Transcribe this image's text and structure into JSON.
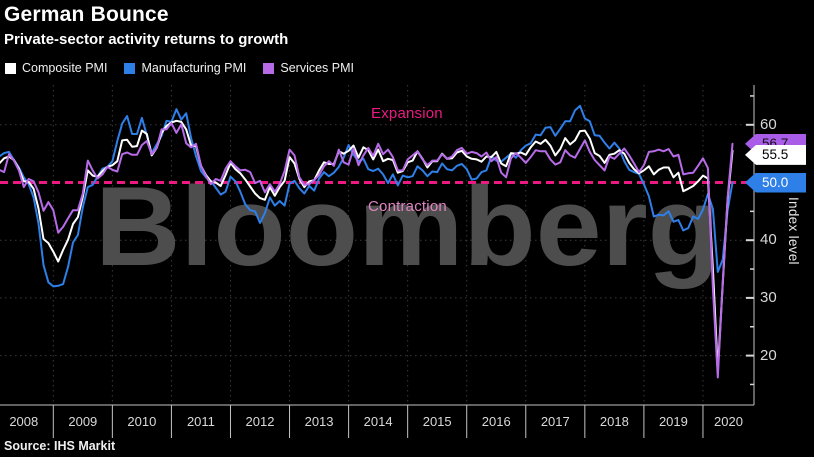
{
  "header": {
    "title": "German Bounce",
    "subtitle": "Private-sector activity returns to growth"
  },
  "legend": [
    {
      "label": "Composite PMI",
      "color": "#ffffff"
    },
    {
      "label": "Manufacturing PMI",
      "color": "#2e7fe8"
    },
    {
      "label": "Services PMI",
      "color": "#b76be8"
    }
  ],
  "watermark": "Bloomberg",
  "annotations": {
    "expansion": {
      "text": "Expansion",
      "color": "#ec1982"
    },
    "contraction": {
      "text": "Contraction",
      "color": "#de84c0"
    }
  },
  "axis": {
    "y_label": "Index level",
    "y_labels": [
      {
        "value": 60,
        "label": "60"
      },
      {
        "value": 40,
        "label": "40"
      },
      {
        "value": 30,
        "label": "30"
      },
      {
        "value": 20,
        "label": "20"
      }
    ],
    "y_major_ticks": [
      20,
      30,
      40,
      50,
      60
    ],
    "y_minor_ticks": [
      15,
      25,
      35,
      45,
      55,
      65
    ],
    "y_gridlines": [
      20,
      30,
      40,
      60
    ]
  },
  "badges": [
    {
      "label": "56.7",
      "series": "Services PMI",
      "value": 56.7,
      "bg": "#a85ce8",
      "text_color": "#111111"
    },
    {
      "label": "55.5",
      "series": "Composite PMI",
      "value": 55.5,
      "bg": "#ffffff",
      "text_color": "#000000"
    },
    {
      "label": "50.0",
      "series": "Manufacturing PMI",
      "value": 50.0,
      "bg": "#2e7fe8",
      "text_color": "#ffffff"
    }
  ],
  "footer": {
    "source": "Source: IHS Markit"
  },
  "chart_data": {
    "type": "line",
    "title": "German Bounce",
    "subtitle": "Private-sector activity returns to growth",
    "x_frequency": "monthly",
    "x_start": "2008-01",
    "x_end": "2020-07",
    "x_tick_labels": [
      "2008",
      "2009",
      "2010",
      "2011",
      "2012",
      "2013",
      "2014",
      "2015",
      "2016",
      "2017",
      "2018",
      "2019",
      "2020"
    ],
    "ylabel": "Index level",
    "ylim": [
      11,
      67
    ],
    "grid": "dotted",
    "legend_position": "top-left",
    "reference_line": {
      "value": 50,
      "color": "#ec1982",
      "style": "dashed",
      "label_above": "Expansion",
      "label_below": "Contraction"
    },
    "series": [
      {
        "name": "Composite PMI",
        "color": "#ffffff",
        "last_value": 55.5,
        "values": [
          53.5,
          53.3,
          54.2,
          54.5,
          53.9,
          52.4,
          50.2,
          50.1,
          48.9,
          45.5,
          40.2,
          39.5,
          38.0,
          36.3,
          38.3,
          40.1,
          42.8,
          44.0,
          47.5,
          52.1,
          51.2,
          51.0,
          52.0,
          52.7,
          53.0,
          53.7,
          57.3,
          57.4,
          56.2,
          56.3,
          59.0,
          58.4,
          54.7,
          56.0,
          58.6,
          59.8,
          60.4,
          60.7,
          60.5,
          59.2,
          56.4,
          56.3,
          52.9,
          51.3,
          50.2,
          50.0,
          49.4,
          51.3,
          53.4,
          52.3,
          51.6,
          50.5,
          49.3,
          48.1,
          47.3,
          47.0,
          49.2,
          47.7,
          49.2,
          50.3,
          54.4,
          53.3,
          50.6,
          49.2,
          50.2,
          50.4,
          52.1,
          53.5,
          53.2,
          53.2,
          55.4,
          55.0,
          55.5,
          56.4,
          54.3,
          56.1,
          55.6,
          54.0,
          55.7,
          53.7,
          54.1,
          53.9,
          51.7,
          52.0,
          53.5,
          53.8,
          55.4,
          54.1,
          52.6,
          53.7,
          53.7,
          55.0,
          54.1,
          54.2,
          55.2,
          55.5,
          54.5,
          54.1,
          54.0,
          53.6,
          54.5,
          54.4,
          55.3,
          53.3,
          52.8,
          55.1,
          55.0,
          55.2,
          54.8,
          56.1,
          57.1,
          56.7,
          57.4,
          56.4,
          54.7,
          55.8,
          57.7,
          56.6,
          57.3,
          58.9,
          59.0,
          57.6,
          55.1,
          54.6,
          53.4,
          54.8,
          55.0,
          55.6,
          55.0,
          53.4,
          52.3,
          51.6,
          52.1,
          52.8,
          51.4,
          52.2,
          52.6,
          52.6,
          50.9,
          51.7,
          48.5,
          48.9,
          49.4,
          50.2,
          51.2,
          50.7,
          35.0,
          17.4,
          32.3,
          47.0,
          55.5
        ]
      },
      {
        "name": "Manufacturing PMI",
        "color": "#2e7fe8",
        "last_value": 50.0,
        "values": [
          53.9,
          54.5,
          55.1,
          55.3,
          53.9,
          52.6,
          50.9,
          49.7,
          47.4,
          42.9,
          35.7,
          32.7,
          32.0,
          32.1,
          32.4,
          35.4,
          39.6,
          40.9,
          45.7,
          49.2,
          49.6,
          51.0,
          52.4,
          52.7,
          53.7,
          57.2,
          60.2,
          61.5,
          58.4,
          58.4,
          61.2,
          58.2,
          55.1,
          56.6,
          58.1,
          60.7,
          60.5,
          62.7,
          60.9,
          62.0,
          57.7,
          54.6,
          52.0,
          50.9,
          50.3,
          49.1,
          47.9,
          48.4,
          51.0,
          50.2,
          48.4,
          46.2,
          45.2,
          45.0,
          43.0,
          44.7,
          47.4,
          46.0,
          46.8,
          46.0,
          49.8,
          50.3,
          49.0,
          48.1,
          49.4,
          48.6,
          50.7,
          51.8,
          51.1,
          51.7,
          52.7,
          54.3,
          56.5,
          54.8,
          53.7,
          54.1,
          52.3,
          52.0,
          52.4,
          51.4,
          49.9,
          51.4,
          49.5,
          51.2,
          50.9,
          51.1,
          52.8,
          52.1,
          51.1,
          51.9,
          51.8,
          53.3,
          52.3,
          52.1,
          52.9,
          53.2,
          52.3,
          50.5,
          50.7,
          51.8,
          52.1,
          54.5,
          53.8,
          53.6,
          54.3,
          55.0,
          54.3,
          55.6,
          56.4,
          56.8,
          58.3,
          58.2,
          59.5,
          59.6,
          58.1,
          59.3,
          60.6,
          60.6,
          62.5,
          63.3,
          61.1,
          60.6,
          58.2,
          58.1,
          56.9,
          55.9,
          56.9,
          55.9,
          53.7,
          52.2,
          51.8,
          51.5,
          49.7,
          47.6,
          44.1,
          44.4,
          44.3,
          45.0,
          43.2,
          43.5,
          41.7,
          42.1,
          44.1,
          43.7,
          45.3,
          48.0,
          45.4,
          34.5,
          36.6,
          45.2,
          50.0
        ]
      },
      {
        "name": "Services PMI",
        "color": "#b76be8",
        "last_value": 56.7,
        "values": [
          53.0,
          52.2,
          51.8,
          54.9,
          53.8,
          52.1,
          49.2,
          50.6,
          50.2,
          48.3,
          45.1,
          46.6,
          45.2,
          41.3,
          42.3,
          43.8,
          45.2,
          45.2,
          48.1,
          53.8,
          52.1,
          50.7,
          51.4,
          52.7,
          52.2,
          51.9,
          54.9,
          55.2,
          54.8,
          54.8,
          56.5,
          57.2,
          54.9,
          56.0,
          59.2,
          59.2,
          60.3,
          58.6,
          60.1,
          56.8,
          56.1,
          56.7,
          52.9,
          51.1,
          49.7,
          50.6,
          50.3,
          52.4,
          53.7,
          52.8,
          52.1,
          52.2,
          51.8,
          49.9,
          50.3,
          48.3,
          49.7,
          48.4,
          49.7,
          52.0,
          55.7,
          54.7,
          50.9,
          49.6,
          49.7,
          50.4,
          51.3,
          52.8,
          53.7,
          52.9,
          55.7,
          53.5,
          53.1,
          55.9,
          53.0,
          54.7,
          56.0,
          54.6,
          56.7,
          54.9,
          55.7,
          54.4,
          52.1,
          52.1,
          54.0,
          54.7,
          55.4,
          54.0,
          53.0,
          53.8,
          53.8,
          54.9,
          54.1,
          54.5,
          55.6,
          56.0,
          55.0,
          55.3,
          55.1,
          54.5,
          55.2,
          53.7,
          54.4,
          51.7,
          50.9,
          54.2,
          55.1,
          54.3,
          53.4,
          54.4,
          55.6,
          55.4,
          55.4,
          54.0,
          53.1,
          53.5,
          55.6,
          54.7,
          54.3,
          55.8,
          57.3,
          55.3,
          53.9,
          53.0,
          52.1,
          54.5,
          54.1,
          55.0,
          55.9,
          54.7,
          53.3,
          51.8,
          53.0,
          55.3,
          55.4,
          55.7,
          55.4,
          55.8,
          54.5,
          54.8,
          51.4,
          51.6,
          51.7,
          52.9,
          54.2,
          52.5,
          31.7,
          16.2,
          32.6,
          47.3,
          56.7
        ]
      }
    ]
  }
}
